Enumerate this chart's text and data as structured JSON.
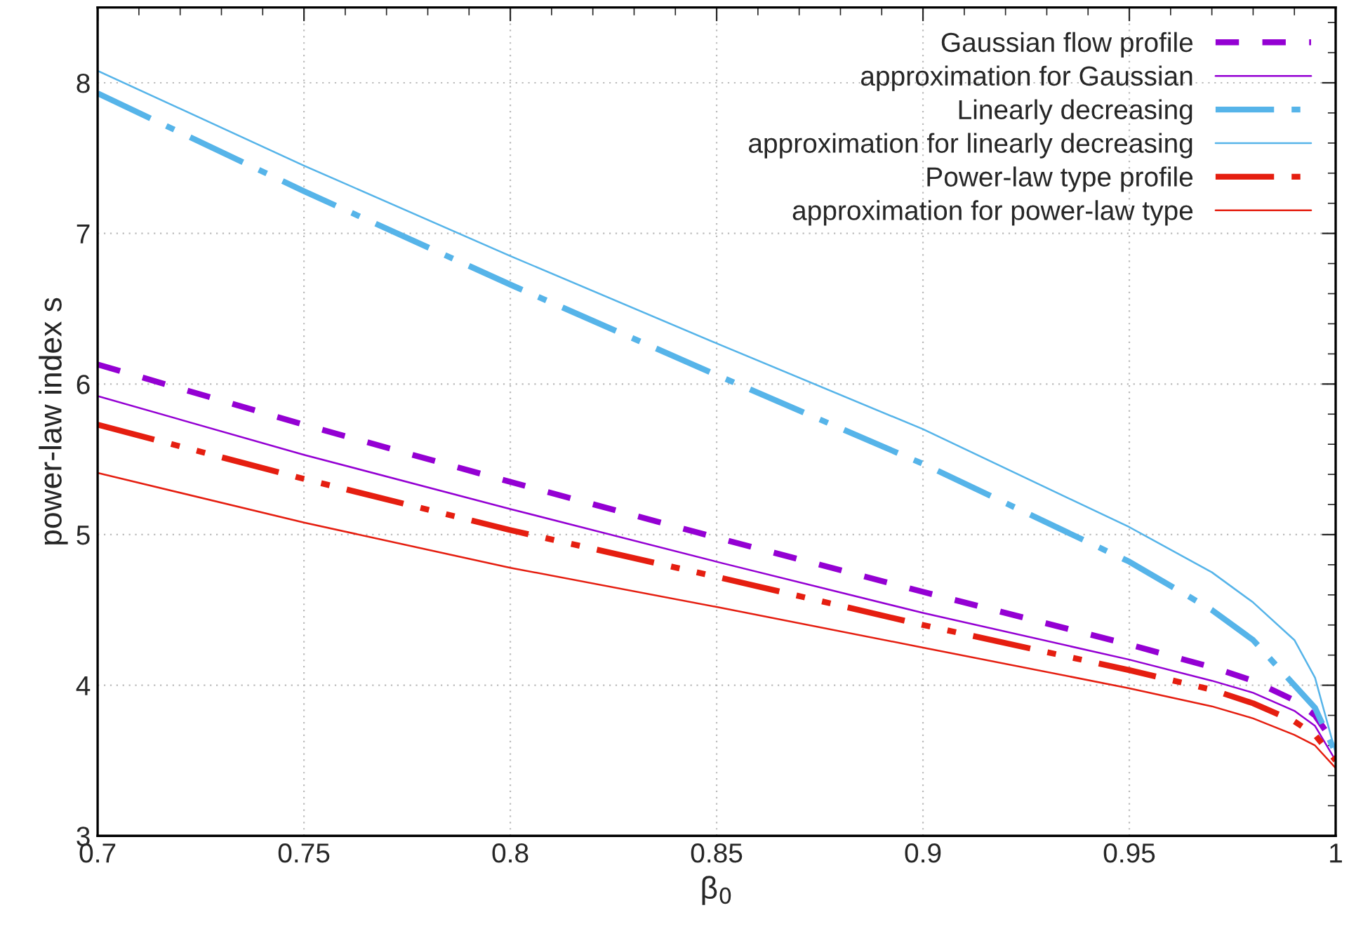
{
  "chart_data": {
    "type": "line",
    "xlabel": "β$_{0}$",
    "ylabel": "power-law index s",
    "x": [
      0.7,
      0.75,
      0.8,
      0.85,
      0.9,
      0.95,
      0.97,
      0.98,
      0.99,
      0.995,
      1.0
    ],
    "xlim": [
      0.7,
      1.0
    ],
    "xticks": [
      0.7,
      0.75,
      0.8,
      0.85,
      0.9,
      0.95,
      1
    ],
    "ylim": [
      3,
      8.5
    ],
    "yticks": [
      3,
      4,
      5,
      6,
      7,
      8
    ],
    "grid": true,
    "legend": "top right",
    "series": [
      {
        "name": "Gaussian flow profile",
        "color": "#9400d3",
        "line_style": "dashed",
        "values": [
          6.13,
          5.73,
          5.35,
          4.98,
          4.62,
          4.27,
          4.12,
          4.03,
          3.9,
          3.8,
          3.6
        ]
      },
      {
        "name": "approximation for Gaussian",
        "color": "#9400d3",
        "line_style": "solid",
        "values": [
          5.92,
          5.53,
          5.17,
          4.82,
          4.48,
          4.17,
          4.03,
          3.95,
          3.83,
          3.73,
          3.5
        ]
      },
      {
        "name": "Linearly decreasing",
        "color": "#56b4e9",
        "line_style": "dashed",
        "values": [
          7.93,
          7.28,
          6.66,
          6.06,
          5.47,
          4.82,
          4.5,
          4.3,
          4.0,
          3.85,
          3.55
        ]
      },
      {
        "name": "approximation for linearly decreasing",
        "color": "#56b4e9",
        "line_style": "solid",
        "values": [
          8.08,
          7.45,
          6.85,
          6.27,
          5.7,
          5.05,
          4.75,
          4.55,
          4.3,
          4.05,
          3.55
        ]
      },
      {
        "name": "Power-law type profile",
        "color": "#e51e10",
        "line_style": "dashed",
        "values": [
          5.73,
          5.37,
          5.03,
          4.72,
          4.4,
          4.1,
          3.97,
          3.88,
          3.76,
          3.67,
          3.5
        ]
      },
      {
        "name": "approximation for power-law type",
        "color": "#e51e10",
        "line_style": "solid",
        "values": [
          5.41,
          5.08,
          4.78,
          4.52,
          4.25,
          3.98,
          3.86,
          3.78,
          3.67,
          3.6,
          3.45
        ]
      }
    ]
  }
}
